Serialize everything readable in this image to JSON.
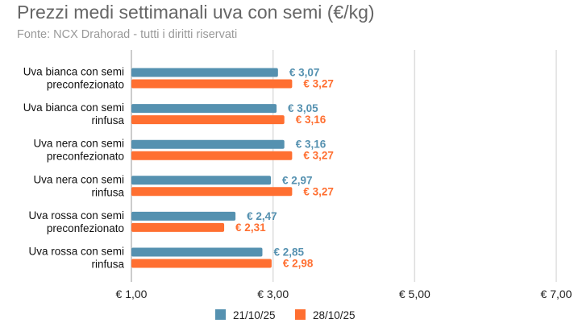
{
  "chart_data": {
    "type": "bar",
    "orientation": "horizontal",
    "title": "Prezzi medi settimanali uva con semi (€/kg)",
    "subtitle": "Fonte: NCX Drahorad - tutti i diritti riservati",
    "categories": [
      [
        "Uva bianca con semi",
        "preconfezionato"
      ],
      [
        "Uva bianca con semi",
        "rinfusa"
      ],
      [
        "Uva nera con semi",
        "preconfezionato"
      ],
      [
        "Uva nera con semi",
        "rinfusa"
      ],
      [
        "Uva rossa con semi",
        "preconfezionato"
      ],
      [
        "Uva rossa con semi",
        "rinfusa"
      ]
    ],
    "series": [
      {
        "name": "21/10/25",
        "color": "#5591b0",
        "values": [
          3.07,
          3.05,
          3.16,
          2.97,
          2.47,
          2.85
        ],
        "labels": [
          "€ 3,07",
          "€ 3,05",
          "€ 3,16",
          "€ 2,97",
          "€ 2,47",
          "€ 2,85"
        ]
      },
      {
        "name": "28/10/25",
        "color": "#ff6f31",
        "values": [
          3.27,
          3.16,
          3.27,
          3.27,
          2.31,
          2.98
        ],
        "labels": [
          "€ 3,27",
          "€ 3,16",
          "€ 3,27",
          "€ 3,27",
          "€ 2,31",
          "€ 2,98"
        ]
      }
    ],
    "xlim": [
      1,
      7
    ],
    "xticks": [
      1,
      3,
      5,
      7
    ],
    "xtick_labels": [
      "€ 1,00",
      "€ 3,00",
      "€ 5,00",
      "€ 7,00"
    ],
    "grid": true,
    "legend_position": "bottom"
  }
}
